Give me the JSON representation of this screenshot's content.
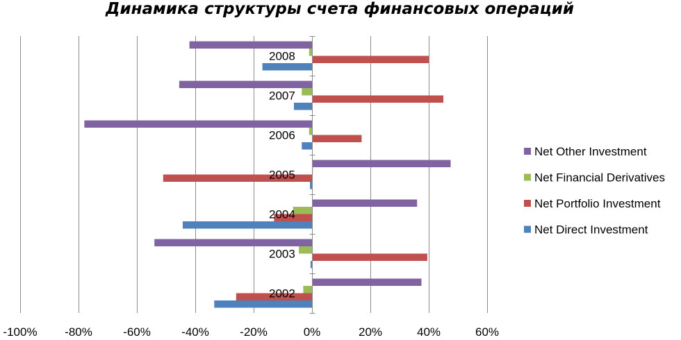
{
  "chart_data": {
    "type": "bar",
    "orientation": "horizontal",
    "title": "Динамика структуры счета финансовых операций",
    "xlabel": "",
    "ylabel": "",
    "xlim": [
      -1.0,
      0.6
    ],
    "x_ticks": [
      -1.0,
      -0.8,
      -0.6,
      -0.4,
      -0.2,
      0.0,
      0.2,
      0.4,
      0.6
    ],
    "x_tick_labels": [
      "-100%",
      "-80%",
      "-60%",
      "-40%",
      "-20%",
      "0%",
      "20%",
      "40%",
      "60%"
    ],
    "categories": [
      "2002",
      "2003",
      "2004",
      "2005",
      "2006",
      "2007",
      "2008"
    ],
    "grid": true,
    "legend_position": "right",
    "series": [
      {
        "name": "Net Direct Investment",
        "color": "#4f81bd",
        "values": [
          -0.335,
          -0.005,
          -0.443,
          -0.007,
          -0.035,
          -0.062,
          -0.17
        ]
      },
      {
        "name": "Net Portfolio Investment",
        "color": "#c0504d",
        "values": [
          -0.26,
          0.395,
          -0.13,
          -0.51,
          0.17,
          0.45,
          0.4
        ]
      },
      {
        "name": "Net Financial Derivatives",
        "color": "#9bbb59",
        "values": [
          -0.03,
          -0.045,
          -0.065,
          0.003,
          -0.01,
          -0.035,
          -0.01
        ]
      },
      {
        "name": "Net Other Investment",
        "color": "#8064a2",
        "values": [
          0.375,
          -0.54,
          0.36,
          0.475,
          -0.78,
          -0.455,
          -0.42
        ]
      }
    ],
    "legend_order": [
      3,
      2,
      1,
      0
    ]
  }
}
